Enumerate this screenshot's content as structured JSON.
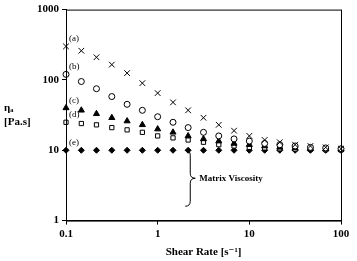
{
  "chart_data": {
    "type": "scatter",
    "xlabel": "Shear Rate [s⁻¹]",
    "ylabel": "ηₐ [Pa.s]",
    "log": true,
    "grid": false,
    "xlim": [
      0.1,
      100
    ],
    "ylim": [
      1,
      1000
    ],
    "xticks": [
      0.1,
      1,
      10,
      100
    ],
    "yticks": [
      1,
      10,
      100,
      1000
    ],
    "x": [
      0.1,
      0.147,
      0.215,
      0.316,
      0.464,
      0.681,
      1,
      1.47,
      2.15,
      3.16,
      4.64,
      6.81,
      10,
      14.7,
      21.5,
      31.6,
      46.4,
      68.1,
      100
    ],
    "series": [
      {
        "name": "(a)",
        "color": "#000000",
        "marker": "x",
        "values": [
          300,
          260,
          210,
          165,
          125,
          90,
          65,
          48,
          37,
          29,
          23,
          19,
          16,
          14,
          13,
          12,
          11.5,
          11,
          10.5
        ]
      },
      {
        "name": "(b)",
        "color": "#000000",
        "marker": "circle_open",
        "values": [
          120,
          95,
          75,
          58,
          45,
          37,
          30,
          25,
          21,
          18,
          16,
          14.5,
          13.5,
          12.5,
          12,
          11.5,
          11,
          10.8,
          10.5
        ]
      },
      {
        "name": "(c)",
        "color": "#000000",
        "marker": "triangle",
        "values": [
          40,
          37,
          33,
          29,
          26,
          23,
          20,
          18,
          16,
          14.5,
          13.5,
          12.5,
          12,
          11.5,
          11,
          10.8,
          10.6,
          10.4,
          10.3
        ]
      },
      {
        "name": "(d)",
        "color": "#000000",
        "marker": "square_open",
        "values": [
          25,
          24,
          23,
          21,
          19.5,
          18,
          16,
          15,
          14,
          13,
          12,
          11.5,
          11,
          10.8,
          10.5,
          10.4,
          10.3,
          10.2,
          10.1
        ]
      },
      {
        "name": "(e)",
        "color": "#000000",
        "marker": "diamond",
        "values": [
          10,
          10,
          10,
          10,
          10,
          10,
          10,
          10,
          10,
          10,
          10,
          10,
          10,
          10,
          10,
          10,
          10,
          10,
          10
        ]
      }
    ],
    "annotations": [
      {
        "text": "Matrix Viscosity",
        "x": 2,
        "y": [
          1.6,
          10
        ]
      }
    ]
  }
}
